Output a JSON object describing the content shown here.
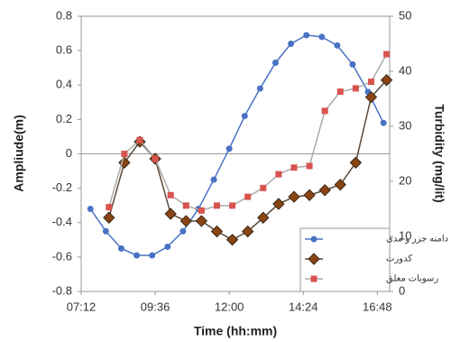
{
  "chart_data": {
    "type": "line",
    "x_label": "Time (hh:mm)",
    "y_label": "Ampliude(m)",
    "y2_label": "Turbidity (mg/lit)",
    "xlim": [
      7.2,
      17.2
    ],
    "xticks": [
      {
        "value": 7.2,
        "label": "07:12"
      },
      {
        "value": 9.6,
        "label": "09:36"
      },
      {
        "value": 12,
        "label": "12:00"
      },
      {
        "value": 14.4,
        "label": "14:24"
      },
      {
        "value": 16.8,
        "label": "16:48"
      }
    ],
    "ylim": [
      -0.8,
      0.8
    ],
    "yticks": [
      -0.8,
      -0.6,
      -0.4,
      -0.2,
      0,
      0.2,
      0.4,
      0.6,
      0.8
    ],
    "y2lim": [
      0,
      50
    ],
    "y2ticks": [
      0,
      10,
      20,
      30,
      40,
      50
    ],
    "series": [
      {
        "name": "دامنه جزر و مدی",
        "color": "#4a72c4",
        "line_color": "#4a72c4",
        "marker": "circle",
        "x": [
          7.5,
          8,
          8.5,
          9,
          9.5,
          10,
          10.5,
          11,
          11.5,
          12,
          12.5,
          13,
          13.5,
          14,
          14.5,
          15,
          15.5,
          16,
          16.5,
          17
        ],
        "values": [
          -0.32,
          -0.45,
          -0.55,
          -0.59,
          -0.59,
          -0.54,
          -0.45,
          -0.32,
          -0.15,
          0.03,
          0.22,
          0.38,
          0.53,
          0.64,
          0.69,
          0.68,
          0.63,
          0.52,
          0.36,
          0.18
        ]
      },
      {
        "name": "کدورت",
        "color": "#8b4513",
        "line_color": "#5a4a3a",
        "marker": "diamond",
        "axis": "y2",
        "x": [
          8.1,
          8.6,
          9.1,
          9.6,
          10.1,
          10.6,
          11.1,
          11.6,
          12.1,
          12.6,
          13.1,
          13.6,
          14.1,
          14.6,
          15.1,
          15.6,
          16.1,
          16.6,
          17.1
        ],
        "values": [
          13.4,
          23.4,
          27.2,
          24.1,
          14.1,
          12.8,
          12.8,
          10.9,
          9.4,
          10.9,
          13.4,
          15.9,
          17.2,
          17.5,
          18.4,
          19.4,
          23.4,
          35.3,
          38.4
        ]
      },
      {
        "name": "رسوبات معلق",
        "color": "#d9534f",
        "line_color": "#aaaaaa",
        "marker": "square",
        "axis": "y2",
        "x": [
          8.1,
          8.6,
          9.1,
          9.6,
          10.1,
          10.6,
          11.1,
          11.6,
          12.1,
          12.6,
          13.1,
          13.6,
          14.1,
          14.6,
          15.1,
          15.6,
          16.1,
          16.6,
          17.1
        ],
        "values": [
          15.3,
          25,
          27.5,
          24.1,
          17.5,
          15.6,
          14.7,
          15.6,
          15.6,
          17.2,
          18.8,
          21.3,
          22.5,
          22.8,
          32.8,
          36.3,
          36.9,
          38.1,
          43.1
        ]
      }
    ],
    "legend": "lower-right"
  }
}
